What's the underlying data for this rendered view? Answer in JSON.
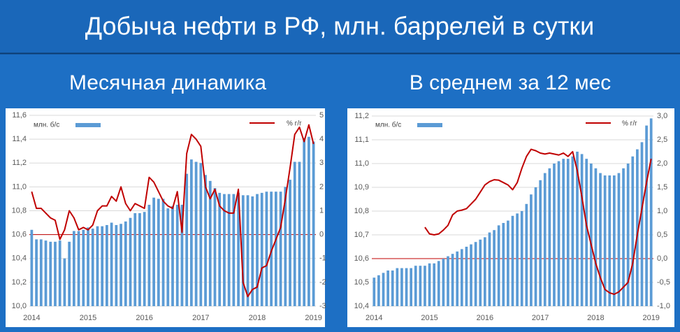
{
  "title": "Добыча нефти в РФ, млн. баррелей в сутки",
  "chart_data": [
    {
      "type": "bar",
      "subtitle": "Месячная динамика",
      "categories": [
        "2014",
        null,
        null,
        null,
        null,
        null,
        null,
        null,
        null,
        null,
        null,
        null,
        "2015",
        null,
        null,
        null,
        null,
        null,
        null,
        null,
        null,
        null,
        null,
        null,
        "2016",
        null,
        null,
        null,
        null,
        null,
        null,
        null,
        null,
        null,
        null,
        null,
        "2017",
        null,
        null,
        null,
        null,
        null,
        null,
        null,
        null,
        null,
        null,
        null,
        "2018",
        null,
        null,
        null,
        null,
        null,
        null,
        null,
        null,
        null,
        null,
        null,
        "2019"
      ],
      "series": [
        {
          "name": "млн. б/с",
          "type": "bar",
          "color": "#5b9bd5",
          "values": [
            10.64,
            10.56,
            10.56,
            10.55,
            10.54,
            10.54,
            10.55,
            10.4,
            10.54,
            10.63,
            10.63,
            10.64,
            10.66,
            10.65,
            10.67,
            10.67,
            10.68,
            10.7,
            10.68,
            10.69,
            10.71,
            10.74,
            10.78,
            10.78,
            10.79,
            10.85,
            10.91,
            10.9,
            10.9,
            10.82,
            10.84,
            10.85,
            10.85,
            11.11,
            11.23,
            11.21,
            11.2,
            11.1,
            11.05,
            10.99,
            10.95,
            10.94,
            10.94,
            10.94,
            10.95,
            10.93,
            10.93,
            10.92,
            10.94,
            10.95,
            10.96,
            10.96,
            10.96,
            10.96,
            11.0,
            11.06,
            11.21,
            11.21,
            11.41,
            11.42,
            11.38
          ]
        },
        {
          "name": "% г/г",
          "type": "line",
          "axis": "y2",
          "color": "#c00000",
          "values": [
            1.8,
            1.1,
            1.1,
            0.9,
            0.7,
            0.6,
            -0.2,
            0.2,
            1.0,
            0.7,
            0.2,
            0.3,
            0.2,
            0.4,
            1.0,
            1.2,
            1.2,
            1.6,
            1.4,
            2.0,
            1.3,
            1.0,
            1.3,
            1.2,
            1.1,
            2.4,
            2.2,
            1.8,
            1.4,
            1.2,
            1.1,
            1.8,
            0.1,
            3.4,
            4.2,
            4.0,
            3.7,
            2.0,
            1.5,
            1.9,
            1.2,
            1.0,
            0.9,
            0.9,
            1.9,
            -2.0,
            -2.6,
            -2.3,
            -2.2,
            -1.4,
            -1.3,
            -0.7,
            -0.2,
            0.3,
            1.5,
            2.8,
            4.2,
            4.5,
            3.9,
            4.6,
            3.8
          ]
        }
      ],
      "ylim": [
        10.0,
        11.6
      ],
      "yticks": [
        {
          "value": 10.0,
          "label": "10,0"
        },
        {
          "value": 10.2,
          "label": "10,2"
        },
        {
          "value": 10.4,
          "label": "10,4"
        },
        {
          "value": 10.6,
          "label": "10,6"
        },
        {
          "value": 10.8,
          "label": "10,8"
        },
        {
          "value": 11.0,
          "label": "11,0"
        },
        {
          "value": 11.2,
          "label": "11,2"
        },
        {
          "value": 11.4,
          "label": "11,4"
        },
        {
          "value": 11.6,
          "label": "11,6"
        }
      ],
      "y2lim": [
        -3,
        5
      ],
      "y2ticks": [
        -3,
        -2,
        -1,
        0,
        1,
        2,
        3,
        4,
        5
      ],
      "grid": true,
      "zero_line_color": "#c00000"
    },
    {
      "type": "bar",
      "subtitle": "В среднем за 12 мес",
      "categories": [
        "2014",
        null,
        null,
        null,
        null,
        null,
        null,
        null,
        null,
        null,
        null,
        null,
        "2015",
        null,
        null,
        null,
        null,
        null,
        null,
        null,
        null,
        null,
        null,
        null,
        "2016",
        null,
        null,
        null,
        null,
        null,
        null,
        null,
        null,
        null,
        null,
        null,
        "2017",
        null,
        null,
        null,
        null,
        null,
        null,
        null,
        null,
        null,
        null,
        null,
        "2018",
        null,
        null,
        null,
        null,
        null,
        null,
        null,
        null,
        null,
        null,
        null,
        "2019"
      ],
      "series": [
        {
          "name": "млн. б/с",
          "type": "bar",
          "color": "#5b9bd5",
          "values": [
            10.52,
            10.53,
            10.54,
            10.55,
            10.55,
            10.56,
            10.56,
            10.56,
            10.56,
            10.57,
            10.57,
            10.57,
            10.58,
            10.58,
            10.59,
            10.6,
            10.61,
            10.62,
            10.63,
            10.64,
            10.65,
            10.66,
            10.67,
            10.68,
            10.69,
            10.71,
            10.72,
            10.74,
            10.75,
            10.76,
            10.78,
            10.79,
            10.8,
            10.83,
            10.87,
            10.9,
            10.93,
            10.96,
            10.98,
            11.0,
            11.01,
            11.02,
            11.02,
            11.03,
            11.05,
            11.04,
            11.02,
            11.0,
            10.98,
            10.96,
            10.95,
            10.95,
            10.95,
            10.96,
            10.98,
            11.0,
            11.03,
            11.06,
            11.09,
            11.16,
            11.19
          ]
        },
        {
          "name": "% г/г",
          "type": "line",
          "axis": "y2",
          "color": "#c00000",
          "values": [
            null,
            null,
            null,
            null,
            null,
            null,
            null,
            null,
            null,
            null,
            null,
            0.66,
            0.52,
            0.5,
            0.52,
            0.6,
            0.7,
            0.92,
            1.0,
            1.02,
            1.05,
            1.15,
            1.25,
            1.4,
            1.55,
            1.62,
            1.66,
            1.65,
            1.6,
            1.55,
            1.45,
            1.6,
            1.9,
            2.15,
            2.3,
            2.27,
            2.22,
            2.2,
            2.22,
            2.2,
            2.18,
            2.22,
            2.15,
            2.25,
            1.85,
            1.3,
            0.7,
            0.3,
            -0.1,
            -0.4,
            -0.65,
            -0.72,
            -0.75,
            -0.7,
            -0.6,
            -0.5,
            -0.1,
            0.5,
            1.05,
            1.6,
            2.1
          ]
        }
      ],
      "ylim": [
        10.4,
        11.2
      ],
      "yticks": [
        {
          "value": 10.4,
          "label": "10,4"
        },
        {
          "value": 10.5,
          "label": "10,5"
        },
        {
          "value": 10.6,
          "label": "10,6"
        },
        {
          "value": 10.7,
          "label": "10,7"
        },
        {
          "value": 10.8,
          "label": "10,8"
        },
        {
          "value": 10.9,
          "label": "10,9"
        },
        {
          "value": 11.0,
          "label": "11,0"
        },
        {
          "value": 11.1,
          "label": "11,1"
        },
        {
          "value": 11.2,
          "label": "11,2"
        }
      ],
      "y2lim": [
        -1,
        3
      ],
      "y2ticks": [
        {
          "value": -1,
          "label": "-1,0"
        },
        {
          "value": -0.5,
          "label": "-0,5"
        },
        {
          "value": 0,
          "label": "0,0"
        },
        {
          "value": 0.5,
          "label": "0,5"
        },
        {
          "value": 1,
          "label": "1,0"
        },
        {
          "value": 1.5,
          "label": "1,5"
        },
        {
          "value": 2,
          "label": "2,0"
        },
        {
          "value": 2.5,
          "label": "2,5"
        },
        {
          "value": 3,
          "label": "3,0"
        }
      ],
      "grid": true,
      "zero_line_color": "#c00000"
    }
  ]
}
